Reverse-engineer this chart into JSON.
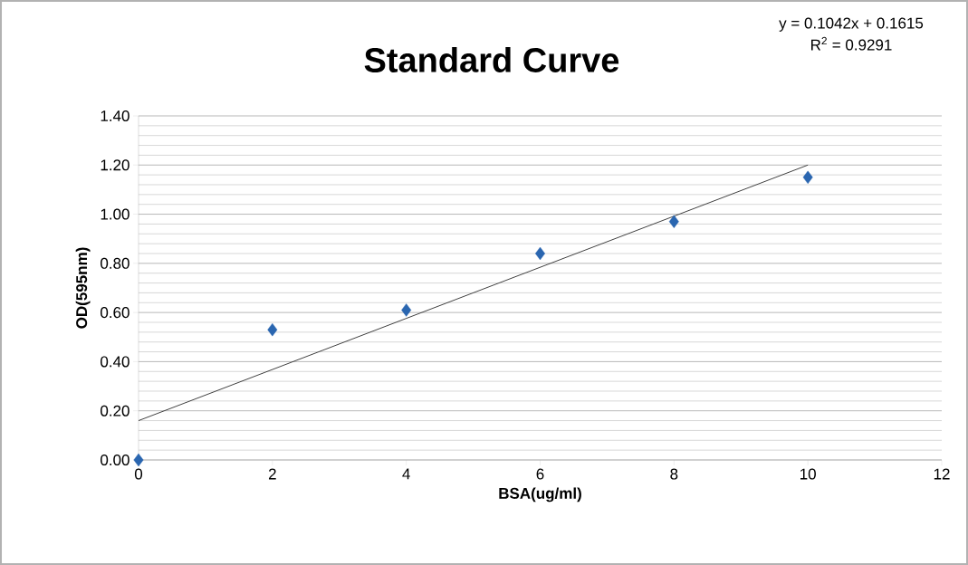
{
  "chart_data": {
    "type": "scatter",
    "title": "Standard Curve",
    "xlabel": "BSA(ug/ml)",
    "ylabel": "OD(595nm)",
    "annotations": [
      "y = 0.1042x + 0.1615",
      "R$^{2}$ = 0.9291"
    ],
    "series": [
      {
        "color": "#2a66b0",
        "marker": "diamond",
        "x": [
          0,
          2,
          4,
          6,
          8,
          10
        ],
        "values": [
          0.0,
          0.53,
          0.61,
          0.84,
          0.97,
          1.15
        ]
      },
      {
        "type": "line",
        "color": "#404040",
        "marker": "none",
        "line_style": "solid",
        "x": [
          0,
          10
        ],
        "values": [
          0.16,
          1.2
        ]
      }
    ],
    "xlim": [
      0,
      12
    ],
    "ylim": [
      0,
      1.4
    ],
    "xticks": [
      0,
      2,
      4,
      6,
      8,
      10,
      12
    ],
    "yticks": [
      {
        "value": 0,
        "label": "0.00"
      },
      {
        "value": 0.2,
        "label": "0.20"
      },
      {
        "value": 0.4,
        "label": "0.40"
      },
      {
        "value": 0.6,
        "label": "0.60"
      },
      {
        "value": 0.8,
        "label": "0.80"
      },
      {
        "value": 1.0,
        "label": "1.00"
      },
      {
        "value": 1.2,
        "label": "1.20"
      },
      {
        "value": 1.4,
        "label": "1.40"
      }
    ],
    "grid": "y"
  }
}
